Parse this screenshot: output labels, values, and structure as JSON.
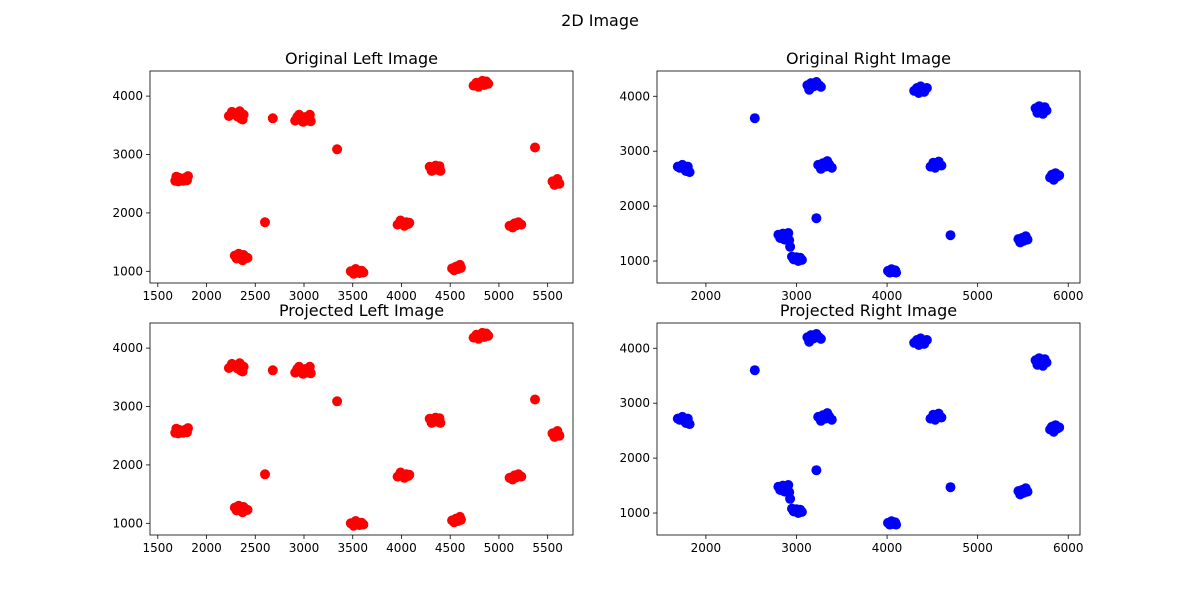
{
  "figure": {
    "title": "2D Image"
  },
  "chart_data": [
    {
      "type": "scatter",
      "title": "Original Left Image",
      "color": "#ff0000",
      "xlim": [
        1420,
        5760
      ],
      "ylim": [
        800,
        4430
      ],
      "xticks": [
        1500,
        2000,
        2500,
        3000,
        3500,
        4000,
        4500,
        5000,
        5500
      ],
      "yticks": [
        1000,
        2000,
        3000,
        4000
      ],
      "points": [
        [
          1680,
          2550
        ],
        [
          1690,
          2620
        ],
        [
          1700,
          2580
        ],
        [
          1710,
          2540
        ],
        [
          1720,
          2600
        ],
        [
          1740,
          2570
        ],
        [
          1760,
          2550
        ],
        [
          1780,
          2600
        ],
        [
          1800,
          2560
        ],
        [
          1810,
          2630
        ],
        [
          2230,
          3660
        ],
        [
          2260,
          3730
        ],
        [
          2280,
          3690
        ],
        [
          2300,
          3700
        ],
        [
          2320,
          3650
        ],
        [
          2340,
          3740
        ],
        [
          2350,
          3620
        ],
        [
          2380,
          3680
        ],
        [
          2370,
          3600
        ],
        [
          2680,
          3620
        ],
        [
          2910,
          3580
        ],
        [
          2930,
          3640
        ],
        [
          2950,
          3680
        ],
        [
          2970,
          3600
        ],
        [
          2990,
          3560
        ],
        [
          3010,
          3640
        ],
        [
          3030,
          3580
        ],
        [
          3060,
          3680
        ],
        [
          3070,
          3570
        ],
        [
          3340,
          3090
        ],
        [
          2600,
          1840
        ],
        [
          2290,
          1270
        ],
        [
          2310,
          1220
        ],
        [
          2330,
          1300
        ],
        [
          2350,
          1250
        ],
        [
          2370,
          1190
        ],
        [
          2380,
          1280
        ],
        [
          2400,
          1240
        ],
        [
          2420,
          1230
        ],
        [
          3480,
          1000
        ],
        [
          3510,
          960
        ],
        [
          3530,
          1040
        ],
        [
          3550,
          990
        ],
        [
          3570,
          970
        ],
        [
          3590,
          1010
        ],
        [
          3610,
          980
        ],
        [
          3960,
          1800
        ],
        [
          3990,
          1870
        ],
        [
          4010,
          1820
        ],
        [
          4030,
          1780
        ],
        [
          4050,
          1840
        ],
        [
          4070,
          1810
        ],
        [
          4080,
          1830
        ],
        [
          4290,
          2790
        ],
        [
          4310,
          2720
        ],
        [
          4330,
          2760
        ],
        [
          4350,
          2810
        ],
        [
          4370,
          2740
        ],
        [
          4390,
          2800
        ],
        [
          4400,
          2720
        ],
        [
          4520,
          1050
        ],
        [
          4540,
          1020
        ],
        [
          4560,
          1080
        ],
        [
          4580,
          1040
        ],
        [
          4600,
          1110
        ],
        [
          4610,
          1060
        ],
        [
          4740,
          4180
        ],
        [
          4770,
          4230
        ],
        [
          4790,
          4160
        ],
        [
          4810,
          4200
        ],
        [
          4830,
          4260
        ],
        [
          4850,
          4190
        ],
        [
          4870,
          4250
        ],
        [
          4890,
          4210
        ],
        [
          5110,
          1780
        ],
        [
          5140,
          1750
        ],
        [
          5160,
          1820
        ],
        [
          5180,
          1790
        ],
        [
          5200,
          1840
        ],
        [
          5230,
          1800
        ],
        [
          5370,
          3120
        ],
        [
          5550,
          2540
        ],
        [
          5570,
          2480
        ],
        [
          5590,
          2560
        ],
        [
          5610,
          2520
        ],
        [
          5620,
          2500
        ],
        [
          5600,
          2580
        ]
      ]
    },
    {
      "type": "scatter",
      "title": "Original Right Image",
      "color": "#0000ff",
      "xlim": [
        1460,
        6130
      ],
      "ylim": [
        600,
        4460
      ],
      "xticks": [
        2000,
        3000,
        4000,
        5000,
        6000
      ],
      "yticks": [
        1000,
        2000,
        3000,
        4000
      ],
      "points": [
        [
          1690,
          2720
        ],
        [
          1710,
          2700
        ],
        [
          1740,
          2750
        ],
        [
          1760,
          2680
        ],
        [
          1780,
          2640
        ],
        [
          1800,
          2720
        ],
        [
          1820,
          2620
        ],
        [
          2540,
          3600
        ],
        [
          2800,
          1480
        ],
        [
          2820,
          1420
        ],
        [
          2850,
          1500
        ],
        [
          2870,
          1390
        ],
        [
          2890,
          1440
        ],
        [
          2910,
          1510
        ],
        [
          2920,
          1380
        ],
        [
          2930,
          1260
        ],
        [
          2950,
          1080
        ],
        [
          2970,
          1030
        ],
        [
          3000,
          1070
        ],
        [
          3020,
          1000
        ],
        [
          3040,
          1060
        ],
        [
          3060,
          1020
        ],
        [
          3120,
          4200
        ],
        [
          3140,
          4120
        ],
        [
          3160,
          4240
        ],
        [
          3190,
          4180
        ],
        [
          3220,
          4260
        ],
        [
          3250,
          4200
        ],
        [
          3270,
          4170
        ],
        [
          3220,
          1780
        ],
        [
          3240,
          2750
        ],
        [
          3270,
          2680
        ],
        [
          3290,
          2780
        ],
        [
          3320,
          2720
        ],
        [
          3340,
          2820
        ],
        [
          3360,
          2760
        ],
        [
          3390,
          2700
        ],
        [
          4010,
          820
        ],
        [
          4030,
          790
        ],
        [
          4050,
          850
        ],
        [
          4070,
          800
        ],
        [
          4090,
          830
        ],
        [
          4100,
          790
        ],
        [
          4300,
          4100
        ],
        [
          4330,
          4150
        ],
        [
          4350,
          4060
        ],
        [
          4370,
          4180
        ],
        [
          4390,
          4120
        ],
        [
          4410,
          4080
        ],
        [
          4440,
          4150
        ],
        [
          4480,
          2720
        ],
        [
          4510,
          2790
        ],
        [
          4530,
          2700
        ],
        [
          4550,
          2760
        ],
        [
          4570,
          2810
        ],
        [
          4600,
          2740
        ],
        [
          4700,
          1470
        ],
        [
          5450,
          1400
        ],
        [
          5470,
          1340
        ],
        [
          5490,
          1420
        ],
        [
          5510,
          1370
        ],
        [
          5530,
          1450
        ],
        [
          5550,
          1390
        ],
        [
          5640,
          3780
        ],
        [
          5660,
          3700
        ],
        [
          5680,
          3820
        ],
        [
          5700,
          3750
        ],
        [
          5720,
          3680
        ],
        [
          5740,
          3800
        ],
        [
          5760,
          3740
        ],
        [
          5800,
          2520
        ],
        [
          5820,
          2570
        ],
        [
          5840,
          2480
        ],
        [
          5860,
          2600
        ],
        [
          5880,
          2540
        ],
        [
          5900,
          2560
        ]
      ]
    },
    {
      "type": "scatter",
      "title": "Projected Left Image",
      "color": "#ff0000",
      "xlim": [
        1420,
        5760
      ],
      "ylim": [
        800,
        4430
      ],
      "xticks": [
        1500,
        2000,
        2500,
        3000,
        3500,
        4000,
        4500,
        5000,
        5500
      ],
      "yticks": [
        1000,
        2000,
        3000,
        4000
      ],
      "points": [
        [
          1680,
          2550
        ],
        [
          1690,
          2620
        ],
        [
          1700,
          2580
        ],
        [
          1710,
          2540
        ],
        [
          1720,
          2600
        ],
        [
          1740,
          2570
        ],
        [
          1760,
          2550
        ],
        [
          1780,
          2600
        ],
        [
          1800,
          2560
        ],
        [
          1810,
          2630
        ],
        [
          2230,
          3660
        ],
        [
          2260,
          3730
        ],
        [
          2280,
          3690
        ],
        [
          2300,
          3700
        ],
        [
          2320,
          3650
        ],
        [
          2340,
          3740
        ],
        [
          2350,
          3620
        ],
        [
          2380,
          3680
        ],
        [
          2370,
          3600
        ],
        [
          2680,
          3620
        ],
        [
          2910,
          3580
        ],
        [
          2930,
          3640
        ],
        [
          2950,
          3680
        ],
        [
          2970,
          3600
        ],
        [
          2990,
          3560
        ],
        [
          3010,
          3640
        ],
        [
          3030,
          3580
        ],
        [
          3060,
          3680
        ],
        [
          3070,
          3570
        ],
        [
          3340,
          3090
        ],
        [
          2600,
          1840
        ],
        [
          2290,
          1270
        ],
        [
          2310,
          1220
        ],
        [
          2330,
          1300
        ],
        [
          2350,
          1250
        ],
        [
          2370,
          1190
        ],
        [
          2380,
          1280
        ],
        [
          2400,
          1240
        ],
        [
          2420,
          1230
        ],
        [
          3480,
          1000
        ],
        [
          3510,
          960
        ],
        [
          3530,
          1040
        ],
        [
          3550,
          990
        ],
        [
          3570,
          970
        ],
        [
          3590,
          1010
        ],
        [
          3610,
          980
        ],
        [
          3960,
          1800
        ],
        [
          3990,
          1870
        ],
        [
          4010,
          1820
        ],
        [
          4030,
          1780
        ],
        [
          4050,
          1840
        ],
        [
          4070,
          1810
        ],
        [
          4080,
          1830
        ],
        [
          4290,
          2790
        ],
        [
          4310,
          2720
        ],
        [
          4330,
          2760
        ],
        [
          4350,
          2810
        ],
        [
          4370,
          2740
        ],
        [
          4390,
          2800
        ],
        [
          4400,
          2720
        ],
        [
          4520,
          1050
        ],
        [
          4540,
          1020
        ],
        [
          4560,
          1080
        ],
        [
          4580,
          1040
        ],
        [
          4600,
          1110
        ],
        [
          4610,
          1060
        ],
        [
          4740,
          4180
        ],
        [
          4770,
          4230
        ],
        [
          4790,
          4160
        ],
        [
          4810,
          4200
        ],
        [
          4830,
          4260
        ],
        [
          4850,
          4190
        ],
        [
          4870,
          4250
        ],
        [
          4890,
          4210
        ],
        [
          5110,
          1780
        ],
        [
          5140,
          1750
        ],
        [
          5160,
          1820
        ],
        [
          5180,
          1790
        ],
        [
          5200,
          1840
        ],
        [
          5230,
          1800
        ],
        [
          5370,
          3120
        ],
        [
          5550,
          2540
        ],
        [
          5570,
          2480
        ],
        [
          5590,
          2560
        ],
        [
          5610,
          2520
        ],
        [
          5620,
          2500
        ],
        [
          5600,
          2580
        ]
      ]
    },
    {
      "type": "scatter",
      "title": "Projected Right Image",
      "color": "#0000ff",
      "xlim": [
        1460,
        6130
      ],
      "ylim": [
        600,
        4460
      ],
      "xticks": [
        2000,
        3000,
        4000,
        5000,
        6000
      ],
      "yticks": [
        1000,
        2000,
        3000,
        4000
      ],
      "points": [
        [
          1690,
          2720
        ],
        [
          1710,
          2700
        ],
        [
          1740,
          2750
        ],
        [
          1760,
          2680
        ],
        [
          1780,
          2640
        ],
        [
          1800,
          2720
        ],
        [
          1820,
          2620
        ],
        [
          2540,
          3600
        ],
        [
          2800,
          1480
        ],
        [
          2820,
          1420
        ],
        [
          2850,
          1500
        ],
        [
          2870,
          1390
        ],
        [
          2890,
          1440
        ],
        [
          2910,
          1510
        ],
        [
          2920,
          1380
        ],
        [
          2930,
          1260
        ],
        [
          2950,
          1080
        ],
        [
          2970,
          1030
        ],
        [
          3000,
          1070
        ],
        [
          3020,
          1000
        ],
        [
          3040,
          1060
        ],
        [
          3060,
          1020
        ],
        [
          3120,
          4200
        ],
        [
          3140,
          4120
        ],
        [
          3160,
          4240
        ],
        [
          3190,
          4180
        ],
        [
          3220,
          4260
        ],
        [
          3250,
          4200
        ],
        [
          3270,
          4170
        ],
        [
          3220,
          1780
        ],
        [
          3240,
          2750
        ],
        [
          3270,
          2680
        ],
        [
          3290,
          2780
        ],
        [
          3320,
          2720
        ],
        [
          3340,
          2820
        ],
        [
          3360,
          2760
        ],
        [
          3390,
          2700
        ],
        [
          4010,
          820
        ],
        [
          4030,
          790
        ],
        [
          4050,
          850
        ],
        [
          4070,
          800
        ],
        [
          4090,
          830
        ],
        [
          4100,
          790
        ],
        [
          4300,
          4100
        ],
        [
          4330,
          4150
        ],
        [
          4350,
          4060
        ],
        [
          4370,
          4180
        ],
        [
          4390,
          4120
        ],
        [
          4410,
          4080
        ],
        [
          4440,
          4150
        ],
        [
          4480,
          2720
        ],
        [
          4510,
          2790
        ],
        [
          4530,
          2700
        ],
        [
          4550,
          2760
        ],
        [
          4570,
          2810
        ],
        [
          4600,
          2740
        ],
        [
          4700,
          1470
        ],
        [
          5450,
          1400
        ],
        [
          5470,
          1340
        ],
        [
          5490,
          1420
        ],
        [
          5510,
          1370
        ],
        [
          5530,
          1450
        ],
        [
          5550,
          1390
        ],
        [
          5640,
          3780
        ],
        [
          5660,
          3700
        ],
        [
          5680,
          3820
        ],
        [
          5700,
          3750
        ],
        [
          5720,
          3680
        ],
        [
          5740,
          3800
        ],
        [
          5760,
          3740
        ],
        [
          5800,
          2520
        ],
        [
          5820,
          2570
        ],
        [
          5840,
          2480
        ],
        [
          5860,
          2600
        ],
        [
          5880,
          2540
        ],
        [
          5900,
          2560
        ]
      ]
    }
  ]
}
